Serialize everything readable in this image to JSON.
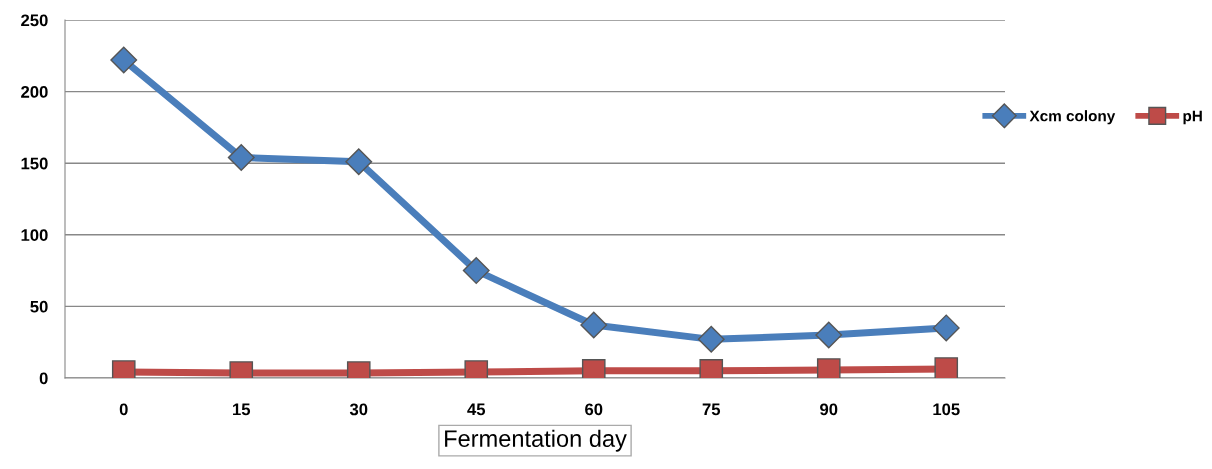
{
  "chart_data": {
    "type": "line",
    "xlabel": "Fermentation day",
    "categories": [
      "0",
      "15",
      "30",
      "45",
      "60",
      "75",
      "90",
      "105"
    ],
    "series": [
      {
        "name": "Xcm colony",
        "color": "#4a7ebb",
        "marker": "diamond",
        "values": [
          222,
          154,
          151,
          75,
          37,
          27,
          30,
          35
        ]
      },
      {
        "name": "pH",
        "color": "#be4b48",
        "marker": "square",
        "values": [
          4.2,
          3.5,
          3.5,
          4.2,
          5,
          5,
          5.6,
          6.3
        ]
      }
    ],
    "ylim": [
      0,
      250
    ],
    "yticks": [
      0,
      50,
      100,
      150,
      200,
      250
    ],
    "grid": "y",
    "legend": "right"
  }
}
